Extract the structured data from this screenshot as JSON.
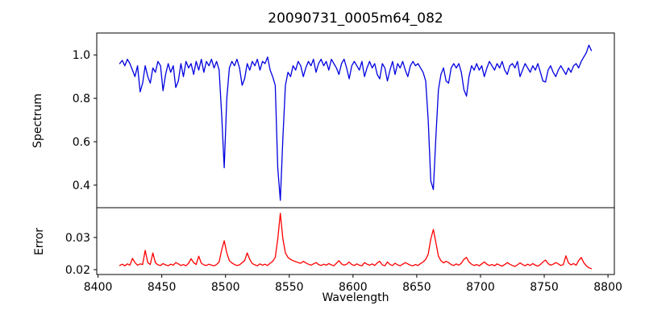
{
  "colors": {
    "spectrum_line": "#0000e0",
    "error_line": "#ff0000",
    "axes": "#000000",
    "background": "#ffffff"
  },
  "chart_data": [
    {
      "type": "line",
      "title": "20090731_0005m64_082",
      "ylabel": "Spectrum",
      "xlabel": "",
      "xlim": [
        8399,
        8805
      ],
      "ylim": [
        0.296,
        1.101
      ],
      "grid": false,
      "legend": "none",
      "y_ticks": [
        {
          "value": 0.4,
          "label": "0.4"
        },
        {
          "value": 0.6,
          "label": "0.6"
        },
        {
          "value": 0.8,
          "label": "0.8"
        },
        {
          "value": 1.0,
          "label": "1.0"
        }
      ],
      "x_ticks": [],
      "series": [
        {
          "name": "spectrum",
          "color": "#0000e0",
          "x_start": 8417,
          "x_step": 2,
          "values": [
            0.96,
            0.975,
            0.95,
            0.98,
            0.96,
            0.93,
            0.9,
            0.95,
            0.83,
            0.87,
            0.95,
            0.9,
            0.87,
            0.94,
            0.92,
            0.97,
            0.95,
            0.835,
            0.91,
            0.96,
            0.92,
            0.95,
            0.85,
            0.88,
            0.96,
            0.9,
            0.97,
            0.94,
            0.96,
            0.91,
            0.97,
            0.93,
            0.98,
            0.92,
            0.97,
            0.95,
            0.98,
            0.94,
            0.97,
            0.93,
            0.72,
            0.48,
            0.8,
            0.94,
            0.97,
            0.95,
            0.98,
            0.94,
            0.86,
            0.89,
            0.96,
            0.93,
            0.97,
            0.95,
            0.98,
            0.93,
            0.97,
            0.96,
            0.99,
            0.93,
            0.9,
            0.86,
            0.48,
            0.33,
            0.62,
            0.86,
            0.92,
            0.9,
            0.95,
            0.93,
            0.97,
            0.95,
            0.9,
            0.94,
            0.97,
            0.95,
            0.98,
            0.92,
            0.96,
            0.98,
            0.95,
            0.97,
            0.93,
            0.98,
            0.96,
            0.94,
            0.91,
            0.96,
            0.98,
            0.94,
            0.89,
            0.95,
            0.97,
            0.95,
            0.93,
            0.97,
            0.9,
            0.94,
            0.97,
            0.94,
            0.96,
            0.91,
            0.89,
            0.96,
            0.94,
            0.88,
            0.93,
            0.97,
            0.91,
            0.96,
            0.94,
            0.97,
            0.93,
            0.9,
            0.95,
            0.97,
            0.95,
            0.96,
            0.94,
            0.92,
            0.88,
            0.7,
            0.42,
            0.38,
            0.62,
            0.84,
            0.91,
            0.94,
            0.88,
            0.87,
            0.94,
            0.96,
            0.94,
            0.96,
            0.92,
            0.84,
            0.81,
            0.9,
            0.95,
            0.93,
            0.96,
            0.93,
            0.95,
            0.9,
            0.94,
            0.97,
            0.95,
            0.93,
            0.96,
            0.94,
            0.97,
            0.93,
            0.91,
            0.95,
            0.96,
            0.94,
            0.97,
            0.9,
            0.93,
            0.96,
            0.94,
            0.92,
            0.95,
            0.93,
            0.96,
            0.92,
            0.88,
            0.875,
            0.93,
            0.95,
            0.92,
            0.9,
            0.93,
            0.95,
            0.93,
            0.91,
            0.94,
            0.92,
            0.95,
            0.96,
            0.94,
            0.97,
            0.99,
            1.01,
            1.045,
            1.02
          ]
        }
      ]
    },
    {
      "type": "line",
      "title": "",
      "ylabel": "Error",
      "xlabel": "Wavelength",
      "xlim": [
        8399,
        8805
      ],
      "ylim": [
        0.0185,
        0.03925
      ],
      "grid": false,
      "legend": "none",
      "y_ticks": [
        {
          "value": 0.02,
          "label": "0.02"
        },
        {
          "value": 0.03,
          "label": "0.03"
        }
      ],
      "x_ticks": [
        {
          "value": 8400,
          "label": "8400"
        },
        {
          "value": 8450,
          "label": "8450"
        },
        {
          "value": 8500,
          "label": "8500"
        },
        {
          "value": 8550,
          "label": "8550"
        },
        {
          "value": 8600,
          "label": "8600"
        },
        {
          "value": 8650,
          "label": "8650"
        },
        {
          "value": 8700,
          "label": "8700"
        },
        {
          "value": 8750,
          "label": "8750"
        },
        {
          "value": 8800,
          "label": "8800"
        }
      ],
      "series": [
        {
          "name": "error",
          "color": "#ff0000",
          "x_start": 8417,
          "x_step": 2,
          "values": [
            0.0213,
            0.0217,
            0.0212,
            0.0218,
            0.0214,
            0.0235,
            0.0222,
            0.0214,
            0.0218,
            0.0216,
            0.026,
            0.0222,
            0.0216,
            0.0252,
            0.0222,
            0.0215,
            0.0213,
            0.0219,
            0.0215,
            0.0212,
            0.0217,
            0.0214,
            0.0222,
            0.0218,
            0.0213,
            0.0216,
            0.0212,
            0.022,
            0.0234,
            0.0222,
            0.0216,
            0.0242,
            0.022,
            0.0215,
            0.0213,
            0.0217,
            0.0214,
            0.0212,
            0.0216,
            0.0224,
            0.0262,
            0.029,
            0.0252,
            0.0228,
            0.0221,
            0.0216,
            0.0213,
            0.0215,
            0.0222,
            0.0228,
            0.0252,
            0.0232,
            0.0219,
            0.0215,
            0.0212,
            0.0218,
            0.0214,
            0.0217,
            0.0213,
            0.022,
            0.0226,
            0.0238,
            0.0295,
            0.0375,
            0.0295,
            0.0252,
            0.0238,
            0.0232,
            0.0228,
            0.0225,
            0.0222,
            0.022,
            0.0226,
            0.0221,
            0.0217,
            0.0214,
            0.0218,
            0.0222,
            0.0216,
            0.0213,
            0.0217,
            0.0214,
            0.0219,
            0.0215,
            0.0212,
            0.022,
            0.0228,
            0.0218,
            0.0214,
            0.0217,
            0.0224,
            0.0216,
            0.0213,
            0.0218,
            0.0214,
            0.0212,
            0.0222,
            0.0217,
            0.0214,
            0.0218,
            0.0213,
            0.0221,
            0.0226,
            0.0215,
            0.0212,
            0.0224,
            0.0216,
            0.0213,
            0.022,
            0.0215,
            0.0212,
            0.0217,
            0.0222,
            0.0218,
            0.0214,
            0.0212,
            0.0216,
            0.0213,
            0.0219,
            0.0224,
            0.0232,
            0.0248,
            0.0295,
            0.0325,
            0.0285,
            0.0242,
            0.0228,
            0.0221,
            0.0226,
            0.0222,
            0.0216,
            0.0213,
            0.0218,
            0.0214,
            0.022,
            0.0232,
            0.0238,
            0.0224,
            0.0217,
            0.0213,
            0.0216,
            0.0212,
            0.0218,
            0.0224,
            0.0217,
            0.0213,
            0.0216,
            0.0212,
            0.0218,
            0.0214,
            0.0211,
            0.0216,
            0.0222,
            0.0217,
            0.0213,
            0.021,
            0.0215,
            0.0221,
            0.0216,
            0.0212,
            0.0217,
            0.0213,
            0.0219,
            0.0214,
            0.0211,
            0.0216,
            0.0224,
            0.023,
            0.0219,
            0.0214,
            0.0217,
            0.0222,
            0.0218,
            0.0213,
            0.0216,
            0.0243,
            0.0221,
            0.0215,
            0.0219,
            0.0214,
            0.0228,
            0.0238,
            0.0222,
            0.0212,
            0.0206,
            0.0203
          ]
        }
      ]
    }
  ]
}
